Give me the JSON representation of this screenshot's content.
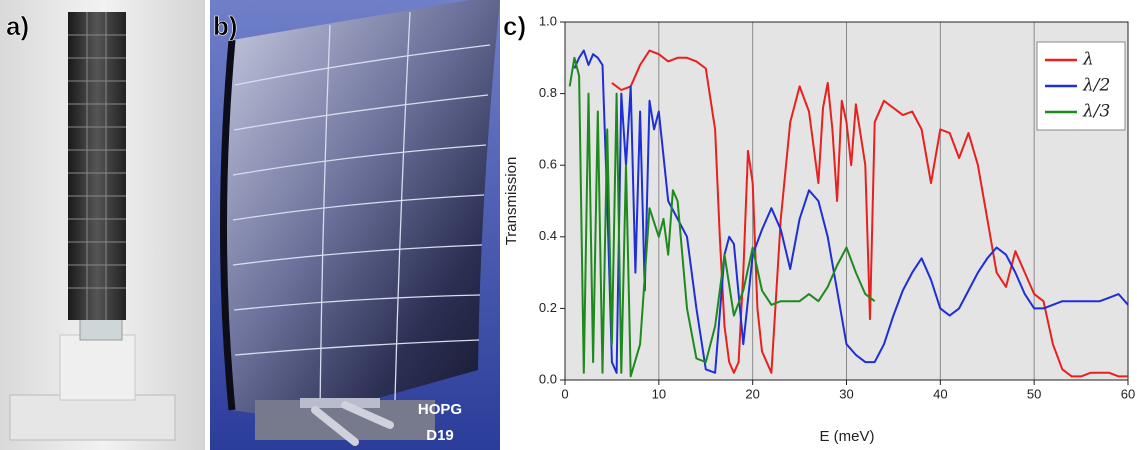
{
  "panels": {
    "a": "a)",
    "b": "b)",
    "c": "c)"
  },
  "photo_label": [
    "HOPG",
    "D19"
  ],
  "chart_data": {
    "type": "line",
    "xlabel": "E (meV)",
    "ylabel": "Transmission",
    "xlim": [
      0,
      60
    ],
    "ylim": [
      0,
      1
    ],
    "xticks": [
      0,
      10,
      20,
      30,
      40,
      50,
      60
    ],
    "yticks": [
      {
        "value": 0,
        "label": "0.0"
      },
      0.2,
      0.4,
      0.6,
      0.8,
      {
        "value": 1,
        "label": "1.0"
      }
    ],
    "grid": true,
    "legend": "upper right",
    "series": [
      {
        "name": "λ",
        "color": "#e8201e",
        "x": [
          5,
          6,
          7,
          8,
          9,
          10,
          11,
          12,
          13,
          14,
          15,
          16,
          16.5,
          17,
          17.5,
          18,
          18.5,
          19,
          19.5,
          20,
          20.5,
          21,
          22,
          23,
          24,
          25,
          26,
          27,
          27.5,
          28,
          28.5,
          29,
          29.5,
          30,
          30.5,
          31,
          32,
          32.5,
          33,
          34,
          35,
          36,
          37,
          38,
          39,
          40,
          41,
          42,
          43,
          44,
          45,
          46,
          47,
          48,
          49,
          50,
          51,
          52,
          53,
          54,
          55,
          56,
          57,
          58,
          59,
          60
        ],
        "values": [
          0.83,
          0.81,
          0.82,
          0.88,
          0.92,
          0.91,
          0.89,
          0.9,
          0.9,
          0.89,
          0.87,
          0.7,
          0.4,
          0.15,
          0.05,
          0.02,
          0.05,
          0.3,
          0.64,
          0.55,
          0.2,
          0.08,
          0.02,
          0.45,
          0.72,
          0.82,
          0.75,
          0.55,
          0.76,
          0.83,
          0.7,
          0.5,
          0.78,
          0.72,
          0.6,
          0.77,
          0.6,
          0.17,
          0.72,
          0.78,
          0.76,
          0.74,
          0.75,
          0.7,
          0.55,
          0.7,
          0.69,
          0.62,
          0.69,
          0.6,
          0.45,
          0.3,
          0.26,
          0.36,
          0.3,
          0.24,
          0.22,
          0.1,
          0.03,
          0.01,
          0.01,
          0.02,
          0.02,
          0.02,
          0.01,
          0.01
        ]
      },
      {
        "name": "λ/2",
        "color": "#1f2fd6",
        "x": [
          1,
          1.5,
          2,
          2.5,
          3,
          3.5,
          4,
          4.5,
          5,
          5.5,
          6,
          6.5,
          7,
          7.5,
          8,
          8.5,
          9,
          9.5,
          10,
          11,
          12,
          13,
          14,
          15,
          16,
          17,
          17.5,
          18,
          19,
          20,
          21,
          22,
          23,
          24,
          25,
          26,
          27,
          28,
          29,
          30,
          31,
          32,
          33,
          34,
          35,
          36,
          37,
          38,
          39,
          40,
          41,
          42,
          43,
          44,
          45,
          46,
          47,
          48,
          49,
          50,
          51,
          52,
          53,
          54,
          55,
          56,
          57,
          58,
          59,
          60
        ],
        "values": [
          0.87,
          0.9,
          0.92,
          0.88,
          0.91,
          0.9,
          0.88,
          0.5,
          0.05,
          0.02,
          0.8,
          0.6,
          0.82,
          0.3,
          0.75,
          0.25,
          0.78,
          0.7,
          0.75,
          0.5,
          0.45,
          0.4,
          0.2,
          0.03,
          0.02,
          0.35,
          0.4,
          0.38,
          0.1,
          0.35,
          0.42,
          0.48,
          0.42,
          0.31,
          0.45,
          0.53,
          0.5,
          0.4,
          0.25,
          0.1,
          0.07,
          0.05,
          0.05,
          0.1,
          0.18,
          0.25,
          0.3,
          0.34,
          0.28,
          0.2,
          0.18,
          0.2,
          0.25,
          0.3,
          0.34,
          0.37,
          0.35,
          0.3,
          0.24,
          0.2,
          0.2,
          0.21,
          0.22,
          0.22,
          0.22,
          0.22,
          0.22,
          0.23,
          0.24,
          0.21
        ]
      },
      {
        "name": "λ/3",
        "color": "#1e8a1e",
        "x": [
          0.5,
          1,
          1.5,
          2,
          2.5,
          3,
          3.5,
          4,
          4.5,
          5,
          5.5,
          6,
          6.5,
          7,
          8,
          9,
          10,
          10.5,
          11,
          11.5,
          12,
          13,
          14,
          15,
          16,
          17,
          18,
          19,
          20,
          21,
          22,
          23,
          24,
          25,
          26,
          27,
          28,
          29,
          30,
          31,
          32,
          33
        ],
        "values": [
          0.82,
          0.9,
          0.85,
          0.02,
          0.8,
          0.05,
          0.75,
          0.02,
          0.7,
          0.1,
          0.8,
          0.02,
          0.6,
          0.01,
          0.1,
          0.48,
          0.4,
          0.45,
          0.35,
          0.53,
          0.5,
          0.2,
          0.06,
          0.05,
          0.15,
          0.35,
          0.18,
          0.25,
          0.37,
          0.25,
          0.21,
          0.22,
          0.22,
          0.22,
          0.24,
          0.22,
          0.26,
          0.32,
          0.37,
          0.3,
          0.24,
          0.22
        ]
      }
    ]
  }
}
